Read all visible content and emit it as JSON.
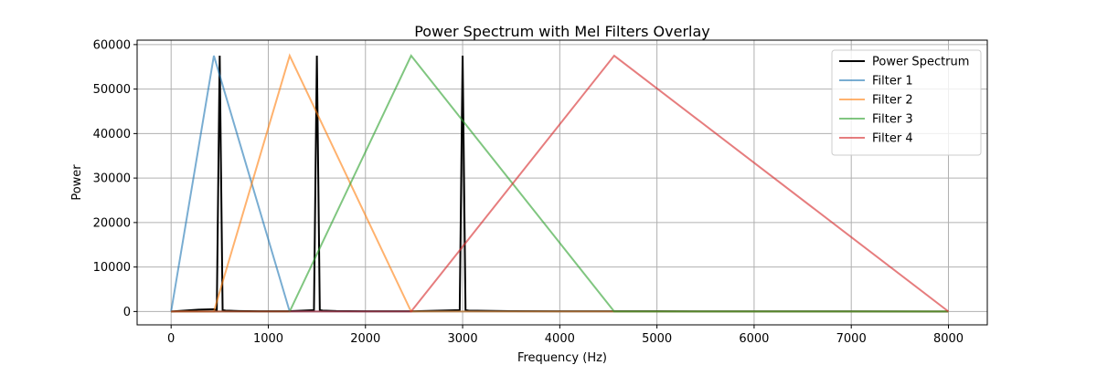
{
  "chart_data": {
    "type": "line",
    "title": "Power Spectrum with Mel Filters Overlay",
    "xlabel": "Frequency (Hz)",
    "ylabel": "Power",
    "xlim": [
      -350,
      8400
    ],
    "ylim": [
      -3000,
      61000
    ],
    "xticks": [
      0,
      1000,
      2000,
      3000,
      4000,
      5000,
      6000,
      7000,
      8000
    ],
    "xtick_labels": [
      "0",
      "1000",
      "2000",
      "3000",
      "4000",
      "5000",
      "6000",
      "7000",
      "8000"
    ],
    "yticks": [
      0,
      10000,
      20000,
      30000,
      40000,
      50000,
      60000
    ],
    "ytick_labels": [
      "0",
      "10000",
      "20000",
      "30000",
      "40000",
      "50000",
      "60000"
    ],
    "grid": true,
    "legend_position": "top-right",
    "series": [
      {
        "name": "Power Spectrum",
        "color": "#000000",
        "opacity": 1,
        "x": [
          0,
          280,
          440,
          470,
          500,
          530,
          560,
          700,
          900,
          1200,
          1470,
          1500,
          1530,
          1560,
          1700,
          2000,
          2500,
          2970,
          3000,
          3030,
          3060,
          3500,
          4000,
          5000,
          6000,
          7000,
          8000
        ],
        "y": [
          0,
          400,
          500,
          300,
          57500,
          300,
          200,
          100,
          50,
          60,
          300,
          57500,
          300,
          200,
          100,
          50,
          40,
          300,
          57500,
          300,
          200,
          80,
          50,
          40,
          30,
          20,
          0
        ]
      },
      {
        "name": "Filter 1",
        "color": "#1f77b4",
        "opacity": 0.6,
        "x": [
          0,
          440,
          1220,
          8000
        ],
        "y": [
          0,
          57500,
          0,
          0
        ]
      },
      {
        "name": "Filter 2",
        "color": "#ff7f0e",
        "opacity": 0.6,
        "x": [
          0,
          440,
          1220,
          2470,
          8000
        ],
        "y": [
          0,
          0,
          57500,
          0,
          0
        ]
      },
      {
        "name": "Filter 3",
        "color": "#2ca02c",
        "opacity": 0.6,
        "x": [
          0,
          1220,
          2470,
          4560,
          8000
        ],
        "y": [
          0,
          0,
          57500,
          0,
          0
        ]
      },
      {
        "name": "Filter 4",
        "color": "#d62728",
        "opacity": 0.6,
        "x": [
          0,
          2470,
          4560,
          8000
        ],
        "y": [
          0,
          0,
          57500,
          0
        ]
      }
    ]
  }
}
